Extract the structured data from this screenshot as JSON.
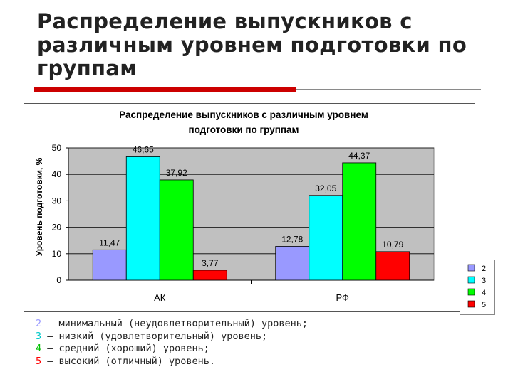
{
  "slide": {
    "title": "Распределение выпускников с различным уровнем подготовки по группам"
  },
  "chart_data": {
    "type": "bar",
    "title_line1": "Распределение выпускников с различным уровнем",
    "title_line2": "подготовки по группам",
    "ylabel": "Уровень подготовки, %",
    "xlabel": "",
    "ylim": [
      0,
      50
    ],
    "yticks": [
      0,
      10,
      20,
      30,
      40,
      50
    ],
    "grid": true,
    "legend_position": "right",
    "categories": [
      "АК",
      "РФ"
    ],
    "series": [
      {
        "name": "2",
        "color": "#9999ff",
        "values": [
          11.47,
          12.78
        ],
        "labels": [
          "11,47",
          "12,78"
        ]
      },
      {
        "name": "3",
        "color": "#00ffff",
        "values": [
          46.65,
          32.05
        ],
        "labels": [
          "46,65",
          "32,05"
        ]
      },
      {
        "name": "4",
        "color": "#00ff00",
        "values": [
          37.92,
          44.37
        ],
        "labels": [
          "37,92",
          "44,37"
        ]
      },
      {
        "name": "5",
        "color": "#ff0000",
        "values": [
          3.77,
          10.79
        ],
        "labels": [
          "3,77",
          "10,79"
        ]
      }
    ],
    "plot_background": "#c0c0c0"
  },
  "notes": [
    {
      "num": "2",
      "color": "#9999ff",
      "text": " – минимальный (неудовлетворительный) уровень;"
    },
    {
      "num": "3",
      "color": "#00c8c8",
      "text": " – низкий (удовлетворительный) уровень;"
    },
    {
      "num": "4",
      "color": "#00c000",
      "text": " – средний (хороший) уровень;"
    },
    {
      "num": "5",
      "color": "#ff0000",
      "text": " – высокий (отличный) уровень."
    }
  ]
}
